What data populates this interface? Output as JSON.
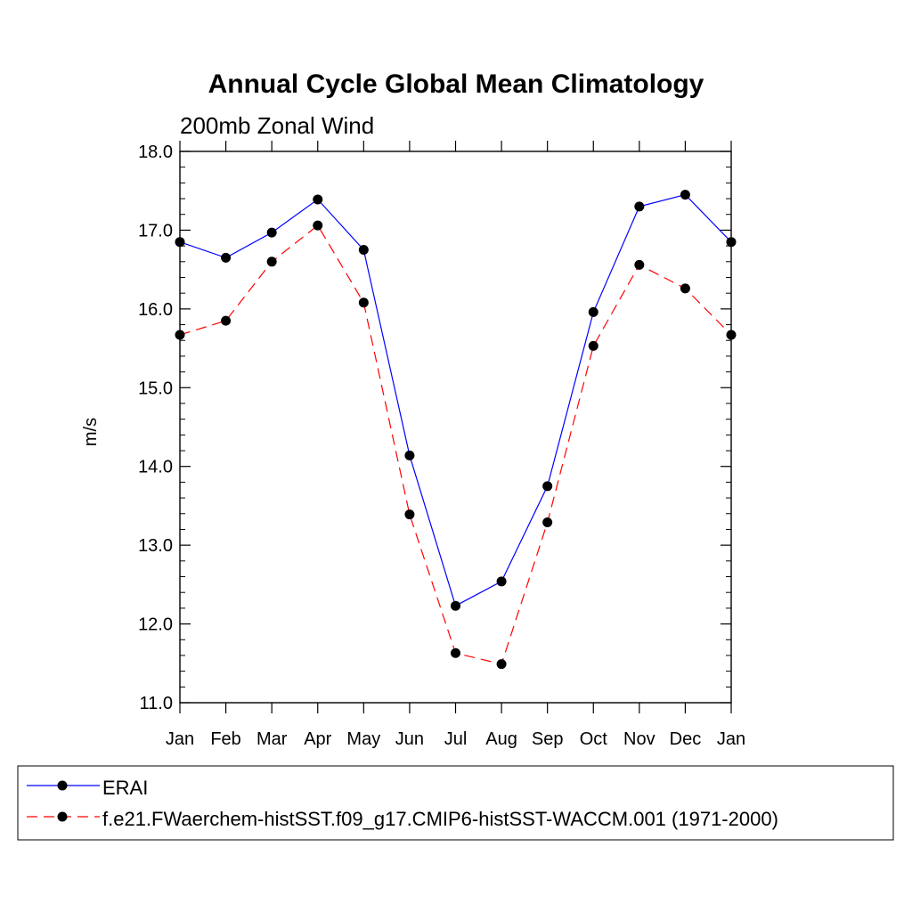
{
  "chart_data": {
    "type": "line",
    "title": "Annual Cycle Global Mean Climatology",
    "subtitle": "200mb Zonal Wind",
    "ylabel": "m/s",
    "xlabel": "",
    "ylim": [
      11.0,
      18.0
    ],
    "yticks": [
      11.0,
      12.0,
      13.0,
      14.0,
      15.0,
      16.0,
      17.0,
      18.0
    ],
    "ytick_labels": [
      "11.0",
      "12.0",
      "13.0",
      "14.0",
      "15.0",
      "16.0",
      "17.0",
      "18.0"
    ],
    "categories": [
      "Jan",
      "Feb",
      "Mar",
      "Apr",
      "May",
      "Jun",
      "Jul",
      "Aug",
      "Sep",
      "Oct",
      "Nov",
      "Dec",
      "Jan"
    ],
    "grid": false,
    "legend_position": "bottom",
    "series": [
      {
        "name": "ERAI",
        "color": "#0000ff",
        "line_style": "solid",
        "marker": "filled-circle",
        "values": [
          16.85,
          16.65,
          16.97,
          17.39,
          16.75,
          14.14,
          12.23,
          12.54,
          13.75,
          15.96,
          17.3,
          17.45,
          16.85
        ]
      },
      {
        "name": "f.e21.FWaerchem-histSST.f09_g17.CMIP6-histSST-WACCM.001 (1971-2000)",
        "color": "#ff0000",
        "line_style": "dashed",
        "marker": "filled-circle",
        "values": [
          15.67,
          15.85,
          16.6,
          17.06,
          16.08,
          13.39,
          11.63,
          11.49,
          13.29,
          15.53,
          16.56,
          16.26,
          15.67
        ]
      }
    ]
  }
}
